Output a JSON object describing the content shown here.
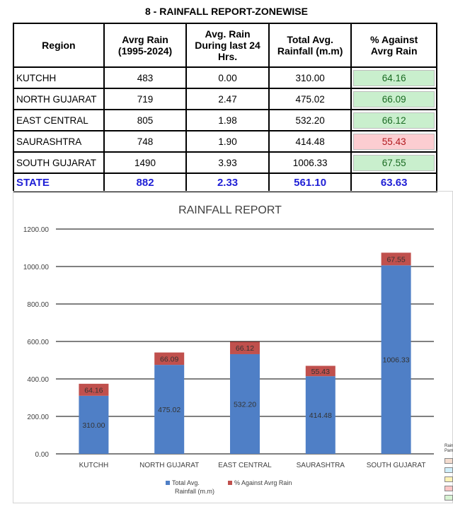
{
  "report_title": "8 - RAINFALL REPORT-ZONEWISE",
  "table": {
    "headers": [
      "Region",
      "Avrg Rain\n(1995-2024)",
      "Avg. Rain\nDuring last 24\nHrs.",
      "Total Avg.\nRainfall (m.m)",
      "% Against\nAvrg Rain"
    ],
    "rows": [
      {
        "region": "KUTCHH",
        "avrg": "483",
        "last24": "0.00",
        "total": "310.00",
        "pct": "64.16",
        "status": "good"
      },
      {
        "region": "NORTH GUJARAT",
        "avrg": "719",
        "last24": "2.47",
        "total": "475.02",
        "pct": "66.09",
        "status": "good"
      },
      {
        "region": "EAST CENTRAL",
        "avrg": "805",
        "last24": "1.98",
        "total": "532.20",
        "pct": "66.12",
        "status": "good"
      },
      {
        "region": "SAURASHTRA",
        "avrg": "748",
        "last24": "1.90",
        "total": "414.48",
        "pct": "55.43",
        "status": "bad"
      },
      {
        "region": "SOUTH GUJARAT",
        "avrg": "1490",
        "last24": "3.93",
        "total": "1006.33",
        "pct": "67.55",
        "status": "good"
      }
    ],
    "state": {
      "region": "STATE",
      "avrg": "882",
      "last24": "2.33",
      "total": "561.10",
      "pct": "63.63"
    }
  },
  "colors": {
    "total": "#4f7fc6",
    "pct": "#c0504d",
    "good_bg": "#c9efcd",
    "bad_bg": "#fccdd1",
    "state_text": "#1f1fd6"
  },
  "side_key": {
    "labels": [
      "Rain",
      "Pam"
    ],
    "swatches": [
      "#f4dccf",
      "#cfeefa",
      "#fdf2b6",
      "#fcc6c6",
      "#d8f3d3"
    ]
  },
  "chart_data": {
    "type": "bar",
    "stacked": true,
    "title": "RAINFALL REPORT",
    "categories": [
      "KUTCHH",
      "NORTH GUJARAT",
      "EAST CENTRAL",
      "SAURASHTRA",
      "SOUTH GUJARAT"
    ],
    "series": [
      {
        "name": "Total Avg. Rainfall (m.m)",
        "values": [
          310.0,
          475.02,
          532.2,
          414.48,
          1006.33
        ],
        "labels": [
          "310.00",
          "475.02",
          "532.20",
          "414.48",
          "1006.33"
        ]
      },
      {
        "name": "% Against Avrg Rain",
        "values": [
          64.16,
          66.09,
          66.12,
          55.43,
          67.55
        ],
        "labels": [
          "64.16",
          "66.09",
          "66.12",
          "55.43",
          "67.55"
        ]
      }
    ],
    "yticks": [
      "0.00",
      "200.00",
      "400.00",
      "600.00",
      "800.00",
      "1000.00",
      "1200.00"
    ],
    "ylim": [
      0,
      1200
    ],
    "legend_position": "bottom",
    "legend": [
      "Total Avg.\nRainfall (m.m)",
      "% Against Avrg Rain"
    ],
    "grid": true
  }
}
